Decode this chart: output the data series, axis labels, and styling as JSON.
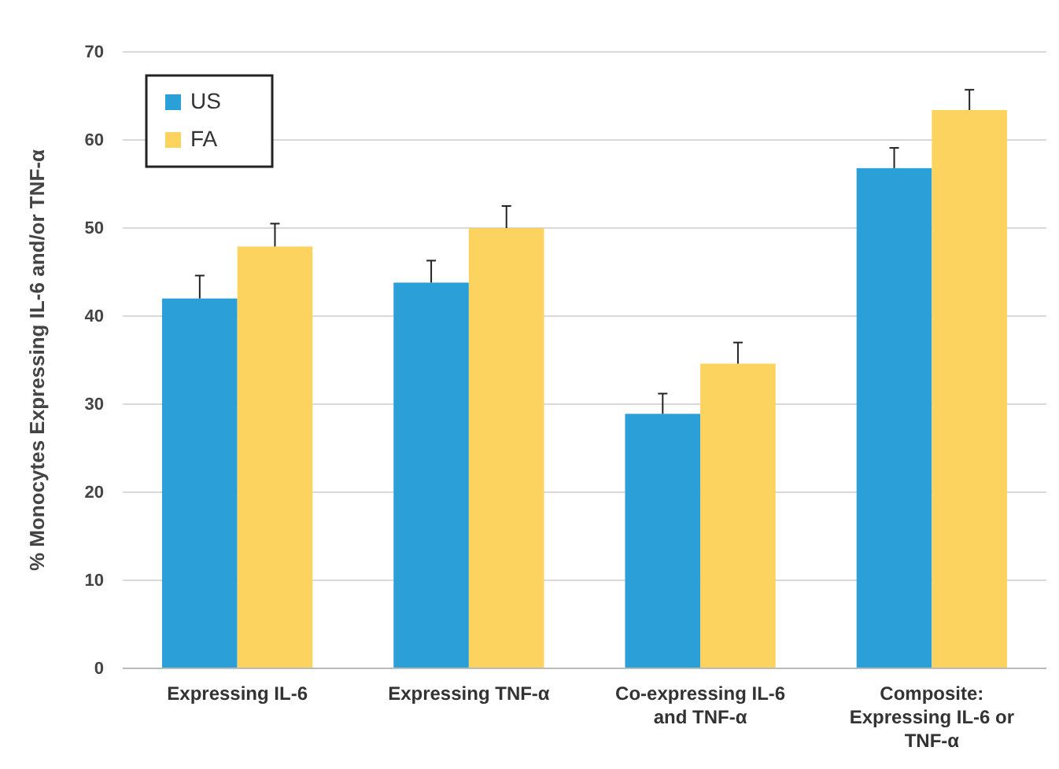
{
  "chart_data": {
    "type": "bar",
    "ylabel": "% Monocytes Expressing IL-6 and/or TNF-α",
    "categories": [
      "Expressing IL-6",
      "Expressing TNF-α",
      "Co-expressing IL-6 and TNF-α",
      "Composite: Expressing IL-6 or TNF-α"
    ],
    "series": [
      {
        "name": "US",
        "color": "#2a9fd8",
        "values": [
          42.0,
          43.8,
          28.9,
          56.8
        ],
        "errors": [
          [
            42.0,
            44.6
          ],
          [
            43.8,
            46.3
          ],
          [
            28.9,
            31.2
          ],
          [
            56.8,
            59.1
          ]
        ]
      },
      {
        "name": "FA",
        "color": "#fdd35f",
        "values": [
          47.9,
          50.0,
          34.6,
          63.4
        ],
        "errors": [
          [
            47.9,
            50.5
          ],
          [
            50.0,
            52.5
          ],
          [
            34.6,
            37.0
          ],
          [
            63.4,
            65.7
          ]
        ]
      }
    ],
    "ylim": [
      0,
      70
    ],
    "yticks": [
      0,
      10,
      20,
      30,
      40,
      50,
      60,
      70
    ],
    "grid": "y",
    "legend": "top left"
  }
}
